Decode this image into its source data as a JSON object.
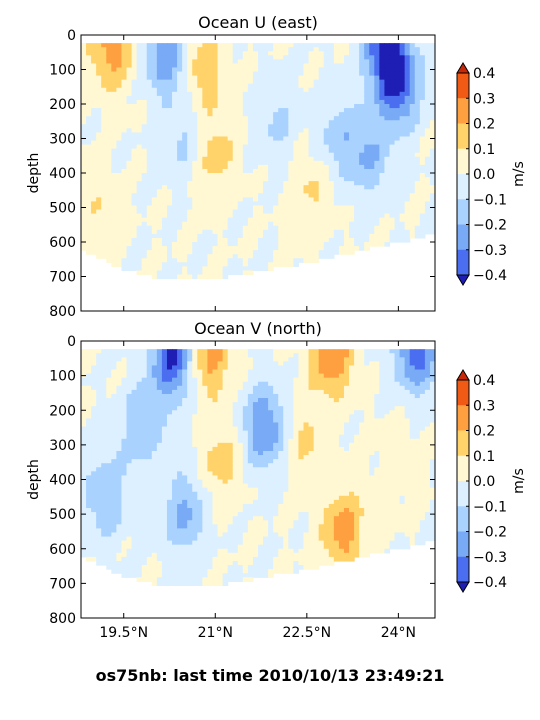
{
  "footer": "os75nb: last time 2010/10/13 23:49:21",
  "colorbar": {
    "label": "m/s",
    "ticks": [
      "0.4",
      "0.3",
      "0.2",
      "0.1",
      "0.0",
      "−0.1",
      "−0.2",
      "−0.3",
      "−0.4"
    ],
    "levels": [
      0.4,
      0.3,
      0.2,
      0.1,
      0.0,
      -0.1,
      -0.2,
      -0.3,
      -0.4
    ],
    "band_colors": [
      "#f05a14",
      "#ffa040",
      "#ffd26a",
      "#fff8d2",
      "#dcf0ff",
      "#aad2ff",
      "#78aaf5",
      "#4b6ef0"
    ],
    "over_color": "#c8280a",
    "under_color": "#1e1eb4"
  },
  "chart_data": [
    {
      "type": "heatmap",
      "title": "Ocean U (east)",
      "ylabel": "depth",
      "xlabel": "",
      "xlim": [
        18.8,
        24.6
      ],
      "ylim": [
        800,
        0
      ],
      "yticks": [
        0,
        100,
        200,
        300,
        400,
        500,
        600,
        700,
        800
      ],
      "xticks": [
        19.5,
        21,
        22.5,
        24
      ],
      "xtick_labels": [],
      "units": "m/s",
      "data_depth_top": 20,
      "max_depth_profile": [
        [
          18.8,
          620
        ],
        [
          19.5,
          680
        ],
        [
          20.0,
          700
        ],
        [
          21.2,
          700
        ],
        [
          22.5,
          660
        ],
        [
          23.0,
          640
        ],
        [
          24.5,
          580
        ],
        [
          24.6,
          580
        ]
      ],
      "features": [
        {
          "lat": 24.0,
          "depth": 150,
          "value": -0.35
        },
        {
          "lat": 23.8,
          "depth": 30,
          "value": -0.42
        },
        {
          "lat": 23.5,
          "depth": 350,
          "value": -0.2
        },
        {
          "lat": 23.0,
          "depth": 300,
          "value": -0.15
        },
        {
          "lat": 21.0,
          "depth": 350,
          "value": 0.15
        },
        {
          "lat": 20.8,
          "depth": 100,
          "value": 0.18
        },
        {
          "lat": 20.2,
          "depth": 60,
          "value": -0.28
        },
        {
          "lat": 19.3,
          "depth": 40,
          "value": 0.25
        },
        {
          "lat": 20.5,
          "depth": 300,
          "value": -0.12
        },
        {
          "lat": 22.0,
          "depth": 250,
          "value": -0.12
        },
        {
          "lat": 22.6,
          "depth": 450,
          "value": 0.12
        },
        {
          "lat": 19.0,
          "depth": 500,
          "value": 0.08
        }
      ]
    },
    {
      "type": "heatmap",
      "title": "Ocean V (north)",
      "ylabel": "depth",
      "xlabel": "",
      "xlim": [
        18.8,
        24.6
      ],
      "ylim": [
        800,
        0
      ],
      "yticks": [
        0,
        100,
        200,
        300,
        400,
        500,
        600,
        700,
        800
      ],
      "xticks": [
        19.5,
        21,
        22.5,
        24
      ],
      "xtick_labels": [
        "19.5°N",
        "21°N",
        "22.5°N",
        "24°N"
      ],
      "units": "m/s",
      "data_depth_top": 20,
      "max_depth_profile": [
        [
          18.8,
          620
        ],
        [
          19.5,
          680
        ],
        [
          20.0,
          700
        ],
        [
          21.2,
          700
        ],
        [
          22.5,
          660
        ],
        [
          23.0,
          640
        ],
        [
          24.5,
          580
        ],
        [
          24.6,
          580
        ]
      ],
      "features": [
        {
          "lat": 20.3,
          "depth": 50,
          "value": -0.42
        },
        {
          "lat": 20.9,
          "depth": 40,
          "value": 0.25
        },
        {
          "lat": 22.9,
          "depth": 40,
          "value": 0.3
        },
        {
          "lat": 24.3,
          "depth": 30,
          "value": -0.35
        },
        {
          "lat": 21.8,
          "depth": 250,
          "value": -0.3
        },
        {
          "lat": 22.5,
          "depth": 300,
          "value": 0.12
        },
        {
          "lat": 23.1,
          "depth": 550,
          "value": 0.25
        },
        {
          "lat": 19.2,
          "depth": 450,
          "value": -0.2
        },
        {
          "lat": 19.8,
          "depth": 250,
          "value": -0.18
        },
        {
          "lat": 20.5,
          "depth": 500,
          "value": -0.22
        },
        {
          "lat": 21.1,
          "depth": 350,
          "value": 0.15
        },
        {
          "lat": 24.0,
          "depth": 350,
          "value": 0.06
        }
      ]
    }
  ]
}
